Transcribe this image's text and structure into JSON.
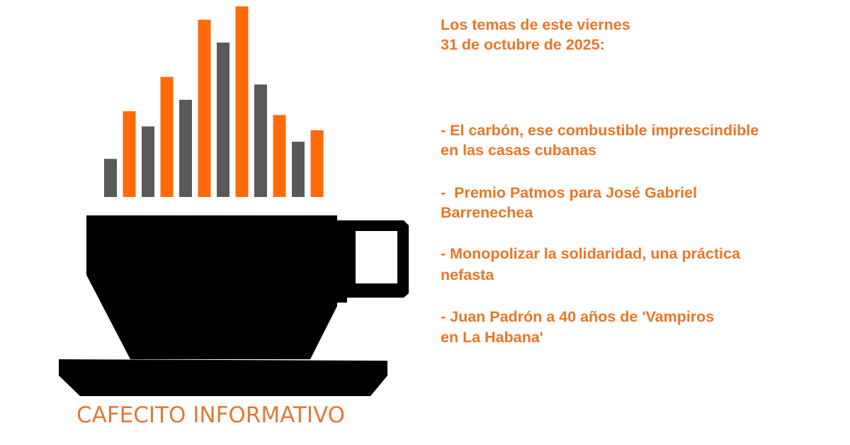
{
  "logo": {
    "brand_name": "CAFECITO INFORMATIVO",
    "colors": {
      "orange": "#ff6a0a",
      "gray": "#595959",
      "cup": "#000000",
      "brand_text": "#e07a35"
    },
    "steam_bars": [
      {
        "color": "gray",
        "level": 0.2
      },
      {
        "color": "orange",
        "level": 0.45
      },
      {
        "color": "gray",
        "level": 0.37
      },
      {
        "color": "orange",
        "level": 0.63
      },
      {
        "color": "gray",
        "level": 0.51
      },
      {
        "color": "orange",
        "level": 0.93
      },
      {
        "color": "gray",
        "level": 0.81
      },
      {
        "color": "orange",
        "level": 1.0
      },
      {
        "color": "gray",
        "level": 0.59
      },
      {
        "color": "orange",
        "level": 0.43
      },
      {
        "color": "gray",
        "level": 0.29
      },
      {
        "color": "orange",
        "level": 0.35
      }
    ]
  },
  "content": {
    "text_color": "#ec7527",
    "heading_lines": [
      "Los temas de este viernes",
      "31 de octubre de 2025:"
    ],
    "topics": [
      {
        "lines": [
          "- El carbón, ese combustible imprescindible",
          "en las casas cubanas"
        ]
      },
      {
        "lines": [
          "-  Premio Patmos para José Gabriel",
          "Barrenechea"
        ]
      },
      {
        "lines": [
          "- Monopolizar la solidaridad, una práctica",
          "nefasta"
        ]
      },
      {
        "lines": [
          "- Juan Padrón a 40 años de 'Vampiros",
          "en La Habana'"
        ]
      }
    ]
  }
}
